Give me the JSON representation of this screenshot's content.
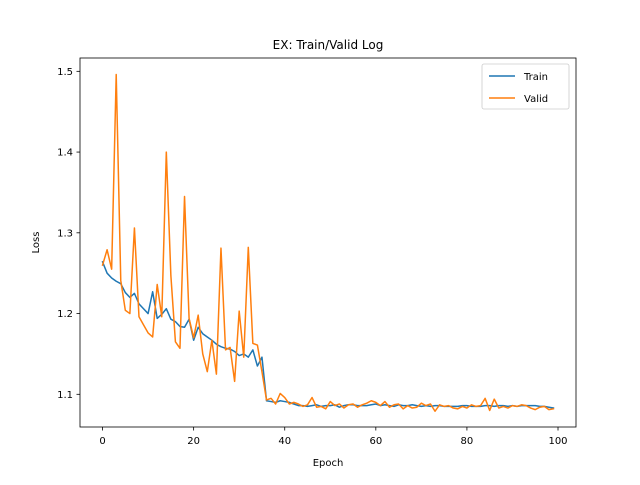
{
  "chart_data": {
    "type": "line",
    "title": "EX: Train/Valid Log",
    "xlabel": "Epoch",
    "ylabel": "Loss",
    "xlim": [
      -4.95,
      103.95
    ],
    "ylim": [
      1.0595,
      1.5165
    ],
    "xticks": [
      0,
      20,
      40,
      60,
      80,
      100
    ],
    "yticks": [
      1.1,
      1.2,
      1.3,
      1.4,
      1.5
    ],
    "xtick_labels": [
      "0",
      "20",
      "40",
      "60",
      "80",
      "100"
    ],
    "ytick_labels": [
      "1.1",
      "1.2",
      "1.3",
      "1.4",
      "1.5"
    ],
    "grid": false,
    "legend_position": "top-right",
    "x": [
      0,
      1,
      2,
      3,
      4,
      5,
      6,
      7,
      8,
      9,
      10,
      11,
      12,
      13,
      14,
      15,
      16,
      17,
      18,
      19,
      20,
      21,
      22,
      23,
      24,
      25,
      26,
      27,
      28,
      29,
      30,
      31,
      32,
      33,
      34,
      35,
      36,
      37,
      38,
      39,
      40,
      41,
      42,
      43,
      44,
      45,
      46,
      47,
      48,
      49,
      50,
      51,
      52,
      53,
      54,
      55,
      56,
      57,
      58,
      59,
      60,
      61,
      62,
      63,
      64,
      65,
      66,
      67,
      68,
      69,
      70,
      71,
      72,
      73,
      74,
      75,
      76,
      77,
      78,
      79,
      80,
      81,
      82,
      83,
      84,
      85,
      86,
      87,
      88,
      89,
      90,
      91,
      92,
      93,
      94,
      95,
      96,
      97,
      98,
      99
    ],
    "series": [
      {
        "name": "Train",
        "color": "#1f77b4",
        "values": [
          1.264,
          1.25,
          1.244,
          1.24,
          1.237,
          1.226,
          1.22,
          1.225,
          1.212,
          1.206,
          1.2,
          1.227,
          1.194,
          1.199,
          1.206,
          1.193,
          1.19,
          1.184,
          1.183,
          1.193,
          1.167,
          1.183,
          1.175,
          1.171,
          1.167,
          1.162,
          1.159,
          1.157,
          1.156,
          1.153,
          1.148,
          1.15,
          1.146,
          1.155,
          1.135,
          1.146,
          1.092,
          1.091,
          1.09,
          1.092,
          1.091,
          1.09,
          1.088,
          1.086,
          1.086,
          1.085,
          1.086,
          1.087,
          1.085,
          1.086,
          1.086,
          1.087,
          1.084,
          1.086,
          1.087,
          1.087,
          1.086,
          1.086,
          1.086,
          1.087,
          1.088,
          1.086,
          1.087,
          1.086,
          1.085,
          1.087,
          1.086,
          1.086,
          1.087,
          1.086,
          1.085,
          1.086,
          1.085,
          1.086,
          1.086,
          1.085,
          1.085,
          1.085,
          1.085,
          1.086,
          1.086,
          1.085,
          1.085,
          1.085,
          1.086,
          1.086,
          1.085,
          1.086,
          1.086,
          1.085,
          1.086,
          1.085,
          1.086,
          1.086,
          1.086,
          1.086,
          1.085,
          1.085,
          1.084,
          1.083
        ]
      },
      {
        "name": "Valid",
        "color": "#ff7f0e",
        "values": [
          1.26,
          1.279,
          1.255,
          1.496,
          1.241,
          1.204,
          1.2,
          1.306,
          1.196,
          1.186,
          1.176,
          1.171,
          1.236,
          1.196,
          1.4,
          1.247,
          1.165,
          1.157,
          1.345,
          1.194,
          1.17,
          1.198,
          1.15,
          1.128,
          1.167,
          1.125,
          1.281,
          1.155,
          1.158,
          1.116,
          1.203,
          1.146,
          1.282,
          1.163,
          1.161,
          1.128,
          1.093,
          1.095,
          1.088,
          1.101,
          1.096,
          1.088,
          1.09,
          1.088,
          1.085,
          1.087,
          1.096,
          1.084,
          1.085,
          1.082,
          1.091,
          1.086,
          1.088,
          1.083,
          1.087,
          1.088,
          1.084,
          1.087,
          1.089,
          1.092,
          1.09,
          1.086,
          1.091,
          1.084,
          1.087,
          1.088,
          1.082,
          1.086,
          1.083,
          1.084,
          1.089,
          1.086,
          1.088,
          1.079,
          1.087,
          1.085,
          1.086,
          1.083,
          1.082,
          1.085,
          1.083,
          1.087,
          1.085,
          1.086,
          1.095,
          1.08,
          1.094,
          1.083,
          1.085,
          1.083,
          1.086,
          1.085,
          1.087,
          1.086,
          1.083,
          1.081,
          1.084,
          1.085,
          1.081,
          1.082
        ]
      }
    ]
  }
}
